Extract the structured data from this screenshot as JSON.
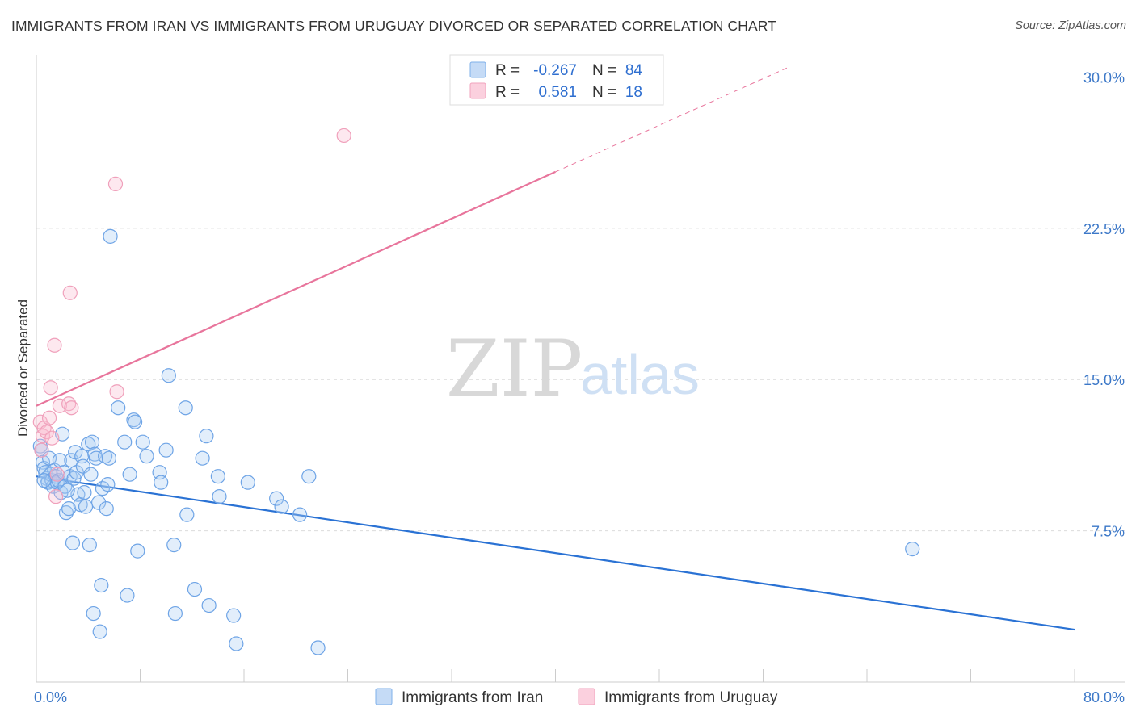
{
  "header": {
    "title": "IMMIGRANTS FROM IRAN VS IMMIGRANTS FROM URUGUAY DIVORCED OR SEPARATED CORRELATION CHART",
    "source": "Source: ZipAtlas.com"
  },
  "watermark": {
    "zip": "ZIP",
    "atlas": "atlas"
  },
  "legend": {
    "rows": [
      {
        "r_label": "R =",
        "r_value": "-0.267",
        "n_label": "N =",
        "n_value": "84",
        "color": "#7fb0ea"
      },
      {
        "r_label": "R =",
        "r_value": "0.581",
        "n_label": "N =",
        "n_value": "18",
        "color": "#f2a3bd"
      }
    ]
  },
  "bottom_legend": [
    {
      "label": "Immigrants from Iran",
      "color": "#7fb0ea"
    },
    {
      "label": "Immigrants from Uruguay",
      "color": "#f2a3bd"
    }
  ],
  "chart_data": {
    "type": "scatter",
    "title": "IMMIGRANTS FROM IRAN VS IMMIGRANTS FROM URUGUAY DIVORCED OR SEPARATED CORRELATION CHART",
    "xlabel": "",
    "ylabel": "Divorced or Separated",
    "xlim": [
      0,
      80
    ],
    "ylim": [
      0,
      30.7
    ],
    "x_tick_labels": [
      "0.0%",
      "80.0%"
    ],
    "y_ticks": [
      7.5,
      15.0,
      22.5,
      30.0
    ],
    "y_tick_labels": [
      "7.5%",
      "15.0%",
      "22.5%",
      "30.0%"
    ],
    "grid": "horizontal dashed",
    "legend_position": "top-center",
    "series": [
      {
        "name": "Immigrants from Iran",
        "color": "#5b9be0",
        "line_color": "#2a72d4",
        "trend": {
          "x": [
            0,
            80
          ],
          "y": [
            10.2,
            2.6
          ]
        },
        "points": [
          [
            0.3,
            11.7
          ],
          [
            0.4,
            11.5
          ],
          [
            0.5,
            10.9
          ],
          [
            0.6,
            10.6
          ],
          [
            0.7,
            10.4
          ],
          [
            0.8,
            10.1
          ],
          [
            0.9,
            9.9
          ],
          [
            1.0,
            11.1
          ],
          [
            1.1,
            10.3
          ],
          [
            1.2,
            10.0
          ],
          [
            1.3,
            9.7
          ],
          [
            1.4,
            10.5
          ],
          [
            1.5,
            10.2
          ],
          [
            1.6,
            9.9
          ],
          [
            1.7,
            10.0
          ],
          [
            1.8,
            11.0
          ],
          [
            1.9,
            9.4
          ],
          [
            2.0,
            12.3
          ],
          [
            2.1,
            10.4
          ],
          [
            2.2,
            9.7
          ],
          [
            2.3,
            8.4
          ],
          [
            2.5,
            8.6
          ],
          [
            2.6,
            10.2
          ],
          [
            2.7,
            11.0
          ],
          [
            2.8,
            6.9
          ],
          [
            2.9,
            10.1
          ],
          [
            3.0,
            11.4
          ],
          [
            3.1,
            10.4
          ],
          [
            3.2,
            9.3
          ],
          [
            3.4,
            8.8
          ],
          [
            3.5,
            11.2
          ],
          [
            3.6,
            10.7
          ],
          [
            3.7,
            9.4
          ],
          [
            3.8,
            8.7
          ],
          [
            4.0,
            11.8
          ],
          [
            4.1,
            6.8
          ],
          [
            4.2,
            10.3
          ],
          [
            4.3,
            11.9
          ],
          [
            4.4,
            3.4
          ],
          [
            4.5,
            11.3
          ],
          [
            4.6,
            11.1
          ],
          [
            4.8,
            8.9
          ],
          [
            4.9,
            2.5
          ],
          [
            5.0,
            4.8
          ],
          [
            5.1,
            9.6
          ],
          [
            5.3,
            11.2
          ],
          [
            5.4,
            8.6
          ],
          [
            5.5,
            9.8
          ],
          [
            5.6,
            11.1
          ],
          [
            5.7,
            22.1
          ],
          [
            6.3,
            13.6
          ],
          [
            6.8,
            11.9
          ],
          [
            7.0,
            4.3
          ],
          [
            7.2,
            10.3
          ],
          [
            7.5,
            13.0
          ],
          [
            7.6,
            12.9
          ],
          [
            7.8,
            6.5
          ],
          [
            8.2,
            11.9
          ],
          [
            8.5,
            11.2
          ],
          [
            9.5,
            10.4
          ],
          [
            9.6,
            9.9
          ],
          [
            10.0,
            11.5
          ],
          [
            10.2,
            15.2
          ],
          [
            10.6,
            6.8
          ],
          [
            10.7,
            3.4
          ],
          [
            11.5,
            13.6
          ],
          [
            11.6,
            8.3
          ],
          [
            12.2,
            4.6
          ],
          [
            12.8,
            11.1
          ],
          [
            13.1,
            12.2
          ],
          [
            13.3,
            3.8
          ],
          [
            14.0,
            10.2
          ],
          [
            14.1,
            9.2
          ],
          [
            15.2,
            3.3
          ],
          [
            15.4,
            1.9
          ],
          [
            16.3,
            9.9
          ],
          [
            18.5,
            9.1
          ],
          [
            18.9,
            8.7
          ],
          [
            20.3,
            8.3
          ],
          [
            21.0,
            10.2
          ],
          [
            21.7,
            1.7
          ],
          [
            67.5,
            6.6
          ],
          [
            0.6,
            10.0
          ],
          [
            2.4,
            9.5
          ]
        ]
      },
      {
        "name": "Immigrants from Uruguay",
        "color": "#f2a3bd",
        "line_color": "#e8759c",
        "trend": {
          "x": [
            0,
            40
          ],
          "y": [
            13.7,
            25.3
          ]
        },
        "trend_extended": {
          "x": [
            40,
            58
          ],
          "y": [
            25.3,
            30.5
          ]
        },
        "points": [
          [
            0.3,
            12.9
          ],
          [
            0.4,
            11.5
          ],
          [
            0.5,
            12.2
          ],
          [
            0.6,
            12.6
          ],
          [
            0.8,
            12.4
          ],
          [
            1.0,
            13.1
          ],
          [
            1.1,
            14.6
          ],
          [
            1.2,
            12.1
          ],
          [
            1.4,
            16.7
          ],
          [
            1.5,
            9.2
          ],
          [
            1.6,
            10.3
          ],
          [
            1.8,
            13.7
          ],
          [
            2.5,
            13.8
          ],
          [
            2.6,
            19.3
          ],
          [
            2.7,
            13.6
          ],
          [
            6.1,
            24.7
          ],
          [
            6.2,
            14.4
          ],
          [
            23.7,
            27.1
          ]
        ]
      }
    ]
  }
}
